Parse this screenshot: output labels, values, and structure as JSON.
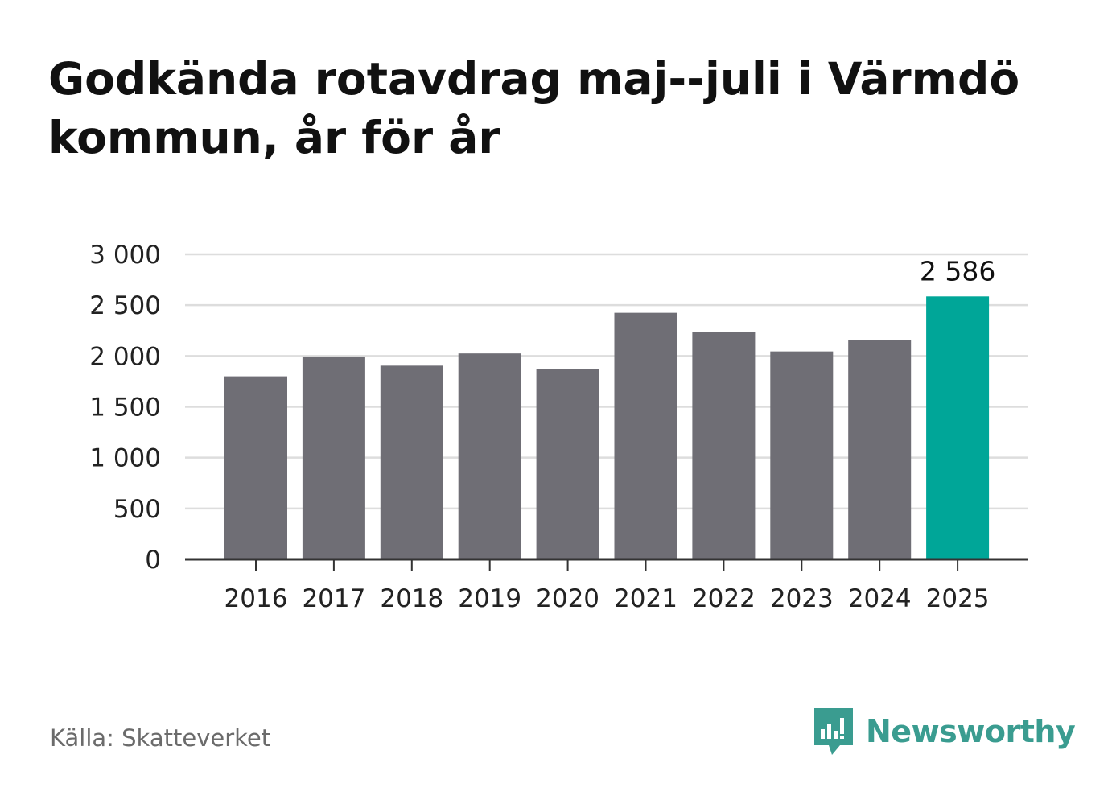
{
  "title": "Godkända rotavdrag maj--juli i Värmdö kommun, år för år",
  "source": "Källa: Skatteverket",
  "brand": {
    "name": "Newsworthy",
    "color": "#3a9c90"
  },
  "colors": {
    "bar": "#6f6e75",
    "highlight": "#00a698",
    "grid": "#dddddd",
    "axis": "#333333",
    "text": "#222222"
  },
  "chart_data": {
    "type": "bar",
    "categories": [
      "2016",
      "2017",
      "2018",
      "2019",
      "2020",
      "2021",
      "2022",
      "2023",
      "2024",
      "2025"
    ],
    "values": [
      1800,
      1995,
      1905,
      2025,
      1870,
      2425,
      2235,
      2045,
      2160,
      2586
    ],
    "highlight_index": 9,
    "data_labels": [
      {
        "index": 9,
        "text": "2 586"
      }
    ],
    "yticks": [
      0,
      500,
      1000,
      1500,
      2000,
      2500,
      3000
    ],
    "ytick_labels": [
      "0",
      "500",
      "1 000",
      "1 500",
      "2 000",
      "2 500",
      "3 000"
    ],
    "ylim": [
      0,
      3000
    ],
    "grid": true,
    "legend": false
  }
}
